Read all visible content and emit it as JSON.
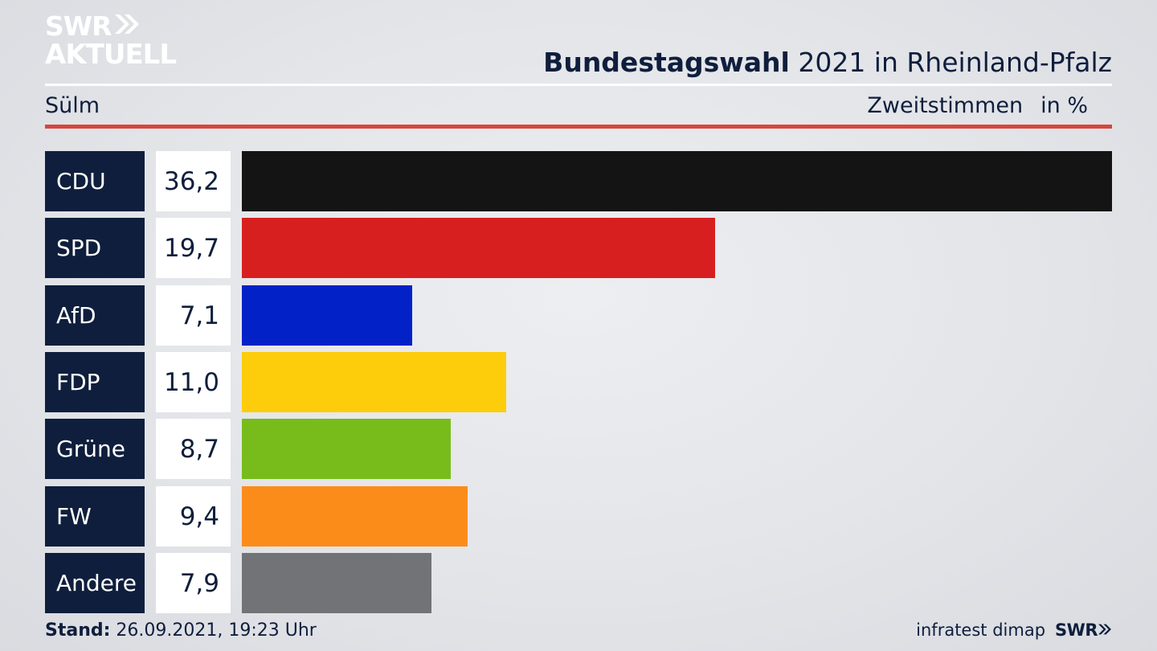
{
  "brand": {
    "logo_line1": "SWR",
    "logo_line2": "AKTUELL",
    "footer_logo": "SWR"
  },
  "header": {
    "title_bold": "Bundestagswahl",
    "title_rest": "2021 in Rheinland-Pfalz",
    "place": "Sülm",
    "measure": "Zweitstimmen",
    "unit": "in %"
  },
  "footer": {
    "stand_label": "Stand:",
    "stand_value": "26.09.2021, 19:23 Uhr",
    "source": "infratest dimap"
  },
  "chart_data": {
    "type": "bar",
    "orientation": "horizontal",
    "categories": [
      "CDU",
      "SPD",
      "AfD",
      "FDP",
      "Grüne",
      "FW",
      "Andere"
    ],
    "values": [
      36.2,
      19.7,
      7.1,
      11.0,
      8.7,
      9.4,
      7.9
    ],
    "value_labels": [
      "36,2",
      "19,7",
      "7,1",
      "11,0",
      "8,7",
      "9,4",
      "7,9"
    ],
    "colors": [
      "#141414",
      "#d81f1f",
      "#0222c8",
      "#fdcc0a",
      "#78bc1b",
      "#fc8c1a",
      "#727376"
    ],
    "xlim": [
      0,
      36.2
    ],
    "grid": false
  }
}
